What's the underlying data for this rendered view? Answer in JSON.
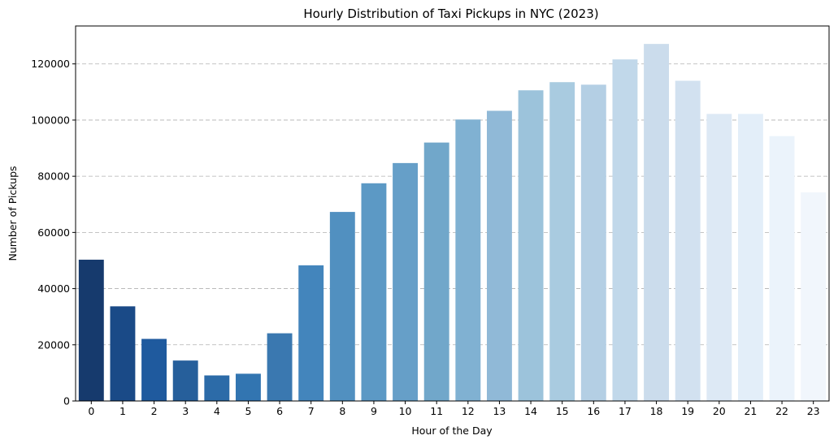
{
  "chart_data": {
    "type": "bar",
    "title": "Hourly Distribution of Taxi Pickups in NYC (2023)",
    "xlabel": "Hour of the Day",
    "ylabel": "Number of Pickups",
    "categories": [
      "0",
      "1",
      "2",
      "3",
      "4",
      "5",
      "6",
      "7",
      "8",
      "9",
      "10",
      "11",
      "12",
      "13",
      "14",
      "15",
      "16",
      "17",
      "18",
      "19",
      "20",
      "21",
      "22",
      "23"
    ],
    "values": [
      50300,
      33700,
      22100,
      14400,
      9100,
      9700,
      24100,
      48300,
      67300,
      77500,
      84700,
      92000,
      100200,
      103300,
      110600,
      113500,
      112600,
      121600,
      127100,
      114000,
      102200,
      102200,
      94300,
      74300
    ],
    "ylim": [
      0,
      133500
    ],
    "yticks": [
      0,
      20000,
      40000,
      60000,
      80000,
      100000,
      120000
    ],
    "ytick_labels": [
      "0",
      "20000",
      "40000",
      "60000",
      "80000",
      "100000",
      "120000"
    ],
    "grid": "y-dashed",
    "colors": [
      "#163a6d",
      "#1a4a87",
      "#1f5a9e",
      "#265f9b",
      "#2c6ba8",
      "#3275b1",
      "#3a78b0",
      "#4385bc",
      "#5190c0",
      "#5c99c5",
      "#669fc8",
      "#71a7ca",
      "#80b1d2",
      "#90b9d7",
      "#9cc3db",
      "#a9cbe0",
      "#b4cfe4",
      "#c1d8ea",
      "#cbdcec",
      "#d2e1f0",
      "#dde9f5",
      "#e3eef9",
      "#ebf3fb",
      "#f1f6fc"
    ]
  }
}
